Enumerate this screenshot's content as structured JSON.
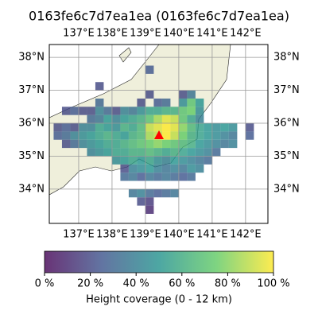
{
  "map": {
    "title": "0163fe6c7d7ea1ea (0163fe6c7d7ea1ea)",
    "xlim": [
      136.12,
      142.67
    ],
    "ylim": [
      32.96,
      38.39
    ],
    "xticks": [
      {
        "value": 137,
        "label": "137°E"
      },
      {
        "value": 138,
        "label": "138°E"
      },
      {
        "value": 139,
        "label": "139°E"
      },
      {
        "value": 140,
        "label": "140°E"
      },
      {
        "value": 141,
        "label": "141°E"
      },
      {
        "value": 142,
        "label": "142°E"
      }
    ],
    "yticks": [
      {
        "value": 34,
        "label": "34°N"
      },
      {
        "value": 35,
        "label": "35°N"
      },
      {
        "value": 36,
        "label": "36°N"
      },
      {
        "value": 37,
        "label": "37°N"
      },
      {
        "value": 38,
        "label": "38°N"
      }
    ],
    "cell_size": 0.25,
    "colormap": "viridis",
    "cells": [
      [
        139.0,
        37.5,
        25
      ],
      [
        137.5,
        37.0,
        20
      ],
      [
        139.0,
        36.75,
        20
      ],
      [
        140.0,
        36.75,
        20
      ],
      [
        140.25,
        36.75,
        35
      ],
      [
        137.5,
        36.5,
        30
      ],
      [
        138.75,
        36.5,
        20
      ],
      [
        139.25,
        36.5,
        25
      ],
      [
        139.5,
        36.5,
        30
      ],
      [
        140.0,
        36.5,
        45
      ],
      [
        140.25,
        36.5,
        70
      ],
      [
        140.5,
        36.5,
        50
      ],
      [
        136.5,
        36.25,
        20
      ],
      [
        136.75,
        36.25,
        25
      ],
      [
        137.0,
        36.25,
        20
      ],
      [
        137.25,
        36.25,
        20
      ],
      [
        137.5,
        36.25,
        40
      ],
      [
        137.75,
        36.25,
        30
      ],
      [
        138.0,
        36.25,
        20
      ],
      [
        138.25,
        36.25,
        40
      ],
      [
        138.5,
        36.25,
        35
      ],
      [
        138.75,
        36.25,
        45
      ],
      [
        139.0,
        36.25,
        55
      ],
      [
        139.25,
        36.25,
        55
      ],
      [
        139.5,
        36.25,
        60
      ],
      [
        139.75,
        36.25,
        60
      ],
      [
        140.0,
        36.25,
        70
      ],
      [
        140.25,
        36.25,
        75
      ],
      [
        140.5,
        36.25,
        45
      ],
      [
        137.25,
        36.0,
        30
      ],
      [
        137.5,
        36.0,
        35
      ],
      [
        137.75,
        36.0,
        50
      ],
      [
        138.0,
        36.0,
        40
      ],
      [
        138.25,
        36.0,
        50
      ],
      [
        138.5,
        36.0,
        55
      ],
      [
        138.75,
        36.0,
        60
      ],
      [
        139.0,
        36.0,
        70
      ],
      [
        139.25,
        36.0,
        85
      ],
      [
        139.5,
        36.0,
        95
      ],
      [
        139.75,
        36.0,
        90
      ],
      [
        140.0,
        36.0,
        70
      ],
      [
        140.25,
        36.0,
        55
      ],
      [
        140.5,
        36.0,
        40
      ],
      [
        136.25,
        35.75,
        20
      ],
      [
        136.5,
        35.75,
        25
      ],
      [
        136.75,
        35.75,
        20
      ],
      [
        137.0,
        35.75,
        40
      ],
      [
        137.25,
        35.75,
        40
      ],
      [
        137.5,
        35.75,
        55
      ],
      [
        137.75,
        35.75,
        50
      ],
      [
        138.0,
        35.75,
        45
      ],
      [
        138.25,
        35.75,
        60
      ],
      [
        138.5,
        35.75,
        55
      ],
      [
        138.75,
        35.75,
        65
      ],
      [
        139.0,
        35.75,
        90
      ],
      [
        139.25,
        35.75,
        95
      ],
      [
        139.5,
        35.75,
        100
      ],
      [
        139.75,
        35.75,
        95
      ],
      [
        140.0,
        35.75,
        80
      ],
      [
        140.25,
        35.75,
        65
      ],
      [
        140.5,
        35.75,
        55
      ],
      [
        140.75,
        35.75,
        50
      ],
      [
        141.0,
        35.75,
        45
      ],
      [
        141.25,
        35.75,
        50
      ],
      [
        141.5,
        35.75,
        45
      ],
      [
        142.0,
        35.75,
        20
      ],
      [
        136.25,
        35.5,
        25
      ],
      [
        136.5,
        35.5,
        30
      ],
      [
        136.75,
        35.5,
        40
      ],
      [
        137.0,
        35.5,
        45
      ],
      [
        137.25,
        35.5,
        50
      ],
      [
        137.5,
        35.5,
        55
      ],
      [
        137.75,
        35.5,
        60
      ],
      [
        138.0,
        35.5,
        55
      ],
      [
        138.25,
        35.5,
        50
      ],
      [
        138.5,
        35.5,
        60
      ],
      [
        138.75,
        35.5,
        65
      ],
      [
        139.0,
        35.5,
        85
      ],
      [
        139.25,
        35.5,
        90
      ],
      [
        139.5,
        35.5,
        100
      ],
      [
        139.75,
        35.5,
        90
      ],
      [
        140.0,
        35.5,
        75
      ],
      [
        140.25,
        35.5,
        60
      ],
      [
        140.5,
        35.5,
        55
      ],
      [
        140.75,
        35.5,
        50
      ],
      [
        141.0,
        35.5,
        45
      ],
      [
        141.25,
        35.5,
        40
      ],
      [
        141.5,
        35.5,
        35
      ],
      [
        142.0,
        35.5,
        25
      ],
      [
        136.5,
        35.25,
        20
      ],
      [
        136.75,
        35.25,
        30
      ],
      [
        137.0,
        35.25,
        40
      ],
      [
        137.25,
        35.25,
        45
      ],
      [
        137.5,
        35.25,
        50
      ],
      [
        137.75,
        35.25,
        55
      ],
      [
        138.0,
        35.25,
        55
      ],
      [
        138.25,
        35.25,
        60
      ],
      [
        138.5,
        35.25,
        65
      ],
      [
        138.75,
        35.25,
        70
      ],
      [
        139.0,
        35.25,
        75
      ],
      [
        139.25,
        35.25,
        80
      ],
      [
        139.5,
        35.25,
        75
      ],
      [
        139.75,
        35.25,
        70
      ],
      [
        140.0,
        35.25,
        65
      ],
      [
        140.25,
        35.25,
        60
      ],
      [
        140.5,
        35.25,
        50
      ],
      [
        140.75,
        35.25,
        45
      ],
      [
        141.0,
        35.25,
        40
      ],
      [
        141.25,
        35.25,
        35
      ],
      [
        141.5,
        35.25,
        40
      ],
      [
        137.25,
        35.0,
        40
      ],
      [
        137.5,
        35.0,
        45
      ],
      [
        137.75,
        35.0,
        50
      ],
      [
        138.0,
        35.0,
        55
      ],
      [
        138.25,
        35.0,
        55
      ],
      [
        138.5,
        35.0,
        60
      ],
      [
        138.75,
        35.0,
        60
      ],
      [
        139.0,
        35.0,
        65
      ],
      [
        139.25,
        35.0,
        60
      ],
      [
        139.5,
        35.0,
        55
      ],
      [
        139.75,
        35.0,
        60
      ],
      [
        140.0,
        35.0,
        55
      ],
      [
        140.25,
        35.0,
        50
      ],
      [
        140.5,
        35.0,
        45
      ],
      [
        140.75,
        35.0,
        40
      ],
      [
        141.0,
        35.0,
        30
      ],
      [
        138.0,
        34.75,
        45
      ],
      [
        138.25,
        34.75,
        50
      ],
      [
        138.5,
        34.75,
        55
      ],
      [
        138.75,
        34.75,
        50
      ],
      [
        139.0,
        34.75,
        55
      ],
      [
        139.25,
        34.75,
        45
      ],
      [
        139.5,
        34.75,
        40
      ],
      [
        139.75,
        34.75,
        50
      ],
      [
        140.0,
        34.75,
        45
      ],
      [
        140.25,
        34.75,
        40
      ],
      [
        140.5,
        34.75,
        35
      ],
      [
        140.75,
        34.75,
        30
      ],
      [
        138.25,
        34.5,
        20
      ],
      [
        138.5,
        34.5,
        40
      ],
      [
        138.75,
        34.5,
        45
      ],
      [
        139.0,
        34.5,
        50
      ],
      [
        139.25,
        34.5,
        40
      ],
      [
        139.5,
        34.5,
        35
      ],
      [
        139.75,
        34.5,
        40
      ],
      [
        140.0,
        34.5,
        35
      ],
      [
        140.25,
        34.5,
        45
      ],
      [
        140.5,
        34.5,
        40
      ],
      [
        138.25,
        34.25,
        30
      ],
      [
        138.5,
        34.25,
        35
      ],
      [
        138.75,
        34.25,
        25
      ],
      [
        139.0,
        34.25,
        35
      ],
      [
        139.25,
        34.25,
        30
      ],
      [
        139.5,
        34.25,
        35
      ],
      [
        139.75,
        34.25,
        30
      ],
      [
        140.0,
        34.25,
        25
      ],
      [
        140.25,
        34.25,
        30
      ],
      [
        138.5,
        33.75,
        35
      ],
      [
        138.75,
        33.75,
        40
      ],
      [
        139.0,
        33.75,
        30
      ],
      [
        139.25,
        33.75,
        25
      ],
      [
        139.5,
        33.75,
        30
      ],
      [
        139.75,
        33.75,
        35
      ],
      [
        138.75,
        33.5,
        20
      ],
      [
        139.0,
        33.5,
        15
      ],
      [
        139.0,
        33.25,
        10
      ]
    ],
    "colorbar": {
      "label": "Height coverage (0 - 12 km)",
      "lim": [
        0,
        100
      ],
      "ticks": [
        {
          "value": 0,
          "label": "0 %"
        },
        {
          "value": 20,
          "label": "20 %"
        },
        {
          "value": 40,
          "label": "40 %"
        },
        {
          "value": 60,
          "label": "60 %"
        },
        {
          "value": 80,
          "label": "80 %"
        },
        {
          "value": 100,
          "label": "100 %"
        }
      ]
    }
  }
}
